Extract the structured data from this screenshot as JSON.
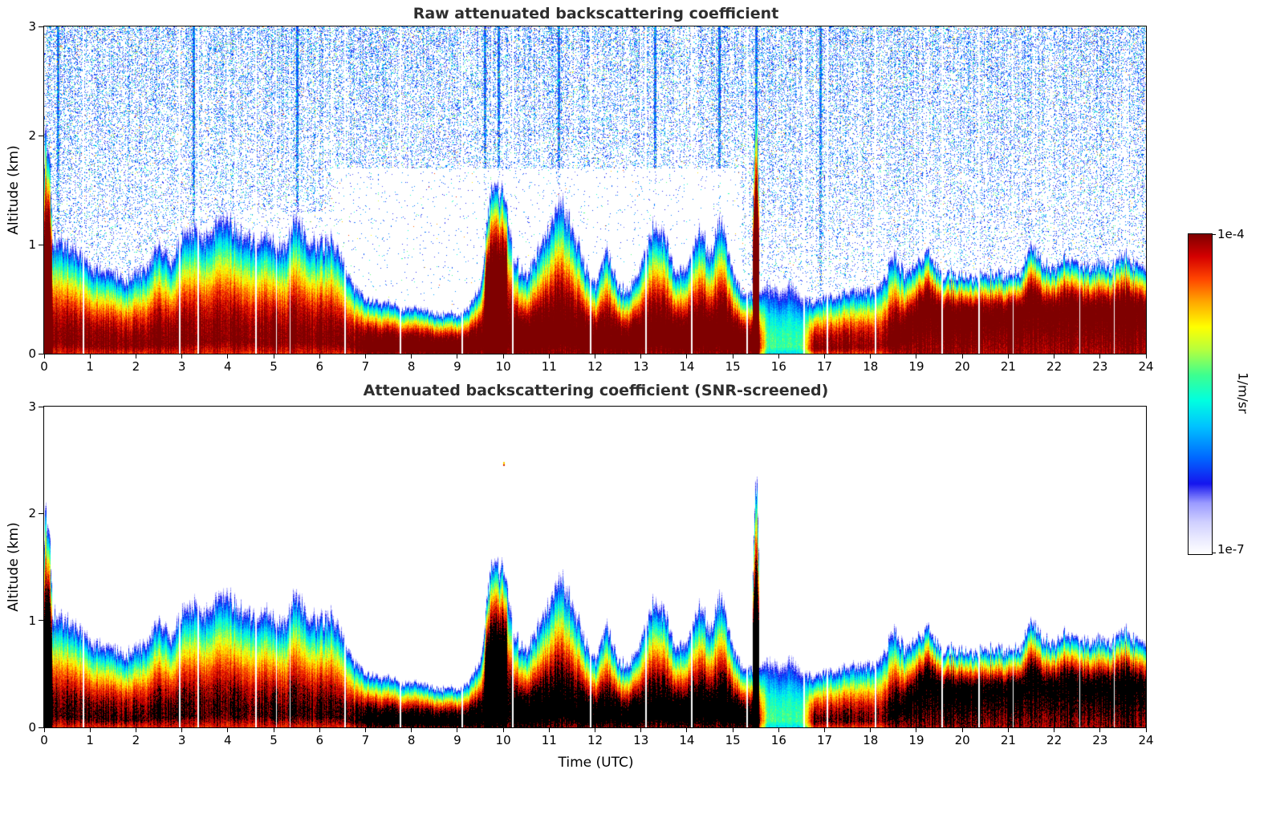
{
  "chart_data": {
    "type": "heatmap",
    "panels": [
      {
        "title": "Raw attenuated backscattering coefficient",
        "screened": false
      },
      {
        "title": "Attenuated backscattering coefficient (SNR-screened)",
        "screened": true
      }
    ],
    "x_axis": {
      "label": "Time (UTC)",
      "min": 0,
      "max": 24,
      "ticks": [
        0,
        1,
        2,
        3,
        4,
        5,
        6,
        7,
        8,
        9,
        10,
        11,
        12,
        13,
        14,
        15,
        16,
        17,
        18,
        19,
        20,
        21,
        22,
        23,
        24
      ]
    },
    "y_axis": {
      "label": "Altitude (km)",
      "min": 0,
      "max": 3,
      "ticks": [
        0,
        1,
        2,
        3
      ]
    },
    "colorbar": {
      "label": "1/m/sr",
      "max_label": "1e-4",
      "min_label": "1e-7",
      "log10_min": -7,
      "log10_max": -4,
      "stops": [
        [
          0,
          "#ffffff"
        ],
        [
          0.05,
          "#e9e9ff"
        ],
        [
          0.1,
          "#cfcfff"
        ],
        [
          0.16,
          "#9a9aff"
        ],
        [
          0.22,
          "#1515ee"
        ],
        [
          0.3,
          "#0066ff"
        ],
        [
          0.4,
          "#00c3ff"
        ],
        [
          0.48,
          "#00ffe0"
        ],
        [
          0.56,
          "#3dff8f"
        ],
        [
          0.64,
          "#b7ff3c"
        ],
        [
          0.71,
          "#ffff00"
        ],
        [
          0.79,
          "#ffa500"
        ],
        [
          0.86,
          "#ff4500"
        ],
        [
          0.93,
          "#d40000"
        ],
        [
          1,
          "#7f0000"
        ]
      ]
    },
    "time_step_hours": 0.25,
    "layer_top_km": [
      1.0,
      1.0,
      0.95,
      0.9,
      0.75,
      0.72,
      0.7,
      0.65,
      0.7,
      0.75,
      1.0,
      0.8,
      1.05,
      1.1,
      1.0,
      1.15,
      1.2,
      1.05,
      1.0,
      1.05,
      1.0,
      0.95,
      1.2,
      1.0,
      0.95,
      1.0,
      0.8,
      0.6,
      0.5,
      0.45,
      0.45,
      0.4,
      0.4,
      0.4,
      0.35,
      0.35,
      0.35,
      0.4,
      0.6,
      1.45,
      1.4,
      0.8,
      0.7,
      0.9,
      1.1,
      1.35,
      1.1,
      0.8,
      0.6,
      0.9,
      0.6,
      0.55,
      0.8,
      1.1,
      1.05,
      0.7,
      0.75,
      1.1,
      0.9,
      1.2,
      0.7,
      0.5,
      0.55,
      0.6,
      0.55,
      0.6,
      0.5,
      0.45,
      0.5,
      0.5,
      0.55,
      0.55,
      0.55,
      0.6,
      0.9,
      0.7,
      0.8,
      0.9,
      0.7,
      0.7,
      0.7,
      0.65,
      0.7,
      0.7,
      0.7,
      0.7,
      0.95,
      0.8,
      0.75,
      0.85,
      0.8,
      0.75,
      0.8,
      0.75,
      0.85,
      0.8,
      0.75
    ],
    "surface_intensity": [
      1.02,
      1.02,
      1.02,
      1.02,
      1.02,
      1.02,
      1.02,
      1.02,
      1.02,
      1.02,
      1.02,
      1.02,
      1.02,
      1.02,
      1.02,
      1.02,
      1.02,
      1.02,
      1.02,
      1.02,
      1.02,
      1.02,
      1.02,
      1.02,
      1.02,
      1.02,
      1.02,
      1.02,
      1.12,
      1.12,
      1.12,
      1.12,
      1.12,
      1.12,
      1.12,
      1.12,
      1.12,
      1.12,
      1.12,
      1.12,
      1.12,
      1.12,
      1.12,
      1.12,
      1.12,
      1.12,
      1.12,
      1.12,
      1.12,
      1.12,
      1.12,
      1.12,
      1.12,
      1.12,
      1.12,
      1.12,
      1.12,
      1.12,
      1.12,
      1.12,
      1.12,
      1.12,
      1.15,
      0.55,
      0.55,
      0.55,
      0.55,
      1.0,
      1.0,
      1.0,
      1.0,
      1.0,
      1.0,
      1.0,
      1.1,
      1.1,
      1.1,
      1.1,
      1.1,
      1.1,
      1.1,
      1.1,
      1.1,
      1.1,
      1.1,
      1.1,
      1.1,
      1.1,
      1.1,
      1.1,
      1.1,
      1.1,
      1.1,
      1.1,
      1.1,
      1.1,
      1.1
    ],
    "spikes": [
      {
        "t": 0.05,
        "top_km": 1.9,
        "width_h": 0.12
      },
      {
        "t": 9.8,
        "top_km": 1.5,
        "width_h": 0.22
      },
      {
        "t": 9.97,
        "top_km": 1.45,
        "width_h": 0.1
      },
      {
        "t": 15.5,
        "top_km": 2.15,
        "width_h": 0.07
      }
    ],
    "gap_times": [
      0.85,
      2.95,
      3.35,
      4.6,
      5.05,
      5.35,
      6.55,
      7.75,
      9.1,
      10.2,
      11.9,
      13.1,
      14.1,
      15.3,
      16.55,
      17.05,
      18.1,
      19.55,
      20.35,
      21.1,
      22.55,
      23.3
    ],
    "noise_burst_times": [
      0.3,
      3.25,
      5.5,
      9.6,
      9.9,
      11.2,
      13.3,
      14.7,
      15.5,
      16.9
    ],
    "isolated_points": [
      {
        "t": 10.0,
        "alt_km": 2.45
      }
    ],
    "background": "#ffffff",
    "title_color": "#2e2e2e"
  }
}
